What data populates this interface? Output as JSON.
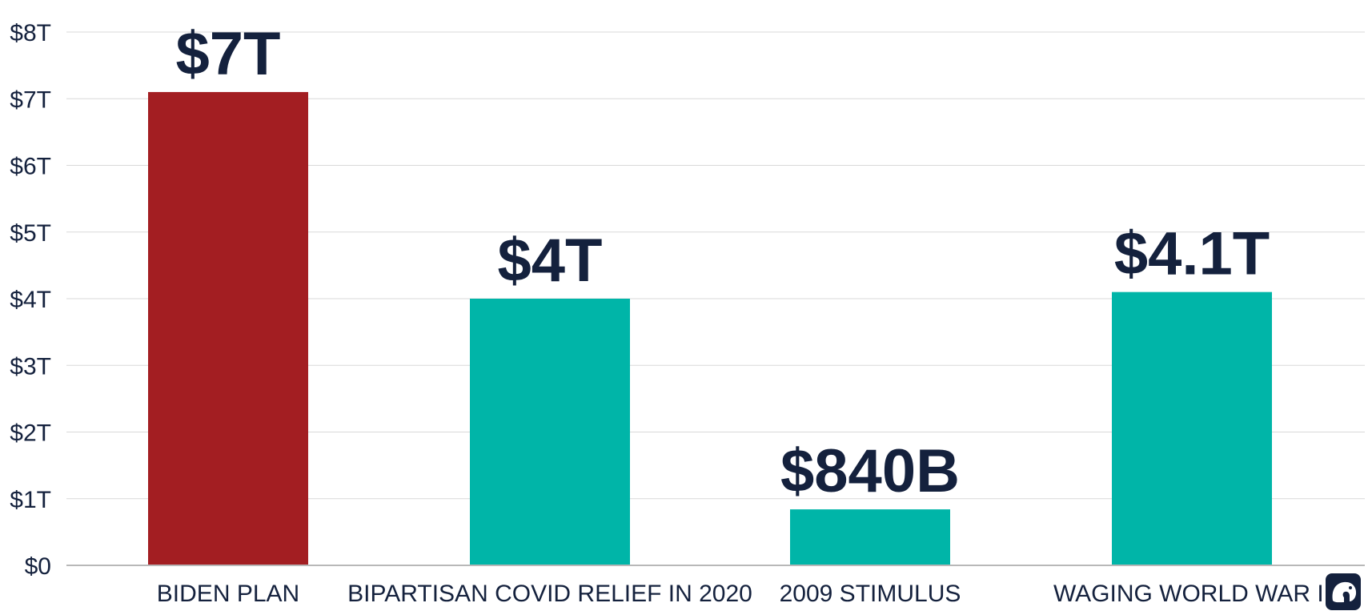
{
  "chart_data": {
    "type": "bar",
    "categories": [
      "BIDEN PLAN",
      "BIPARTISAN COVID RELIEF IN 2020",
      "2009 STIMULUS",
      "WAGING WORLD WAR II"
    ],
    "values": [
      7.1,
      4.0,
      0.84,
      4.1
    ],
    "data_labels": [
      "$7T",
      "$4T",
      "$840B",
      "$4.1T"
    ],
    "bar_colors": [
      "#a31e22",
      "#00b5a8",
      "#00b5a8",
      "#00b5a8"
    ],
    "y_ticks": [
      0,
      1,
      2,
      3,
      4,
      5,
      6,
      7,
      8
    ],
    "y_tick_labels": [
      "$0",
      "$1T",
      "$2T",
      "$3T",
      "$4T",
      "$5T",
      "$6T",
      "$7T",
      "$8T"
    ],
    "ylim": [
      0,
      8
    ],
    "grid": true,
    "title": "",
    "xlabel": "",
    "ylabel": ""
  },
  "colors": {
    "text": "#14213d",
    "grid": "#d9d9d9",
    "axis": "#b8b8b8",
    "logo_bg": "#14213d"
  },
  "logo": {
    "icon": "elephant-icon"
  }
}
